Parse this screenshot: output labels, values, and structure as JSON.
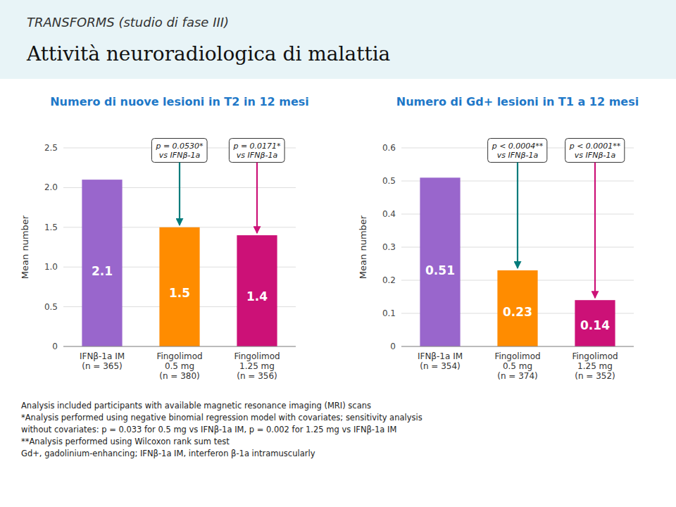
{
  "subtitle": "TRANSFORMS (studio di fase III)",
  "title": "Attività neuroradiologica di malattia",
  "chart_data": [
    {
      "type": "bar",
      "title": "Numero di nuove lesioni in T2 in 12 mesi",
      "categories": [
        "IFNβ-1a IM\n(n = 365)",
        "Fingolimod\n0.5 mg\n(n = 380)",
        "Fingolimod\n1.25 mg\n(n = 356)"
      ],
      "values": [
        2.1,
        1.5,
        1.4
      ],
      "colors": [
        "#9966CC",
        "#FF8C00",
        "#CC1177"
      ],
      "ylim": [
        0,
        2.5
      ],
      "yticks": [
        0,
        0.5,
        {
          "value": 1,
          "label": "1.0"
        },
        1.5,
        {
          "value": 2,
          "label": "2.0"
        },
        2.5
      ],
      "ylabel": "Mean number",
      "grid": true,
      "data_labels": true,
      "annotations": [
        {
          "text": "p = 0.0530*\nvs IFNβ-1a",
          "category": "Fingolimod\n0.5 mg\n(n = 380)",
          "color": "#007B7B"
        },
        {
          "text": "p = 0.0171*\nvs IFNβ-1a",
          "category": "Fingolimod\n1.25 mg\n(n = 356)",
          "color": "#CC1177"
        }
      ]
    },
    {
      "type": "bar",
      "title": "Numero di Gd+ lesioni in T1 a 12 mesi",
      "categories": [
        "IFNβ-1a IM\n(n = 354)",
        "Fingolimod\n0.5 mg\n(n = 374)",
        "Fingolimod\n1.25 mg\n(n = 352)"
      ],
      "values": [
        0.51,
        0.23,
        0.14
      ],
      "colors": [
        "#9966CC",
        "#FF8C00",
        "#CC1177"
      ],
      "ylim": [
        0,
        0.6
      ],
      "yticks": [
        0,
        0.1,
        0.2,
        0.3,
        0.4,
        0.5,
        0.6
      ],
      "ylabel": "Mean number",
      "grid": true,
      "data_labels": true,
      "annotations": [
        {
          "text": "p < 0.0004**\nvs IFNβ-1a",
          "category": "Fingolimod\n0.5 mg\n(n = 374)",
          "color": "#007B7B"
        },
        {
          "text": "p < 0.0001**\nvs IFNβ-1a",
          "category": "Fingolimod\n1.25 mg\n(n = 352)",
          "color": "#CC1177"
        }
      ]
    }
  ],
  "notes": [
    "Analysis included participants with available magnetic resonance imaging (MRI) scans",
    "*Analysis performed using negative binomial regression model with covariates; sensitivity analysis",
    "without covariates: p = 0.033 for 0.5 mg vs IFNβ-1a IM, p = 0.002 for 1.25 mg vs IFNβ-1a IM",
    "**Analysis performed using Wilcoxon rank sum test",
    "Gd+, gadolinium-enhancing; IFNβ-1a IM, interferon β-1a intramuscularly"
  ]
}
